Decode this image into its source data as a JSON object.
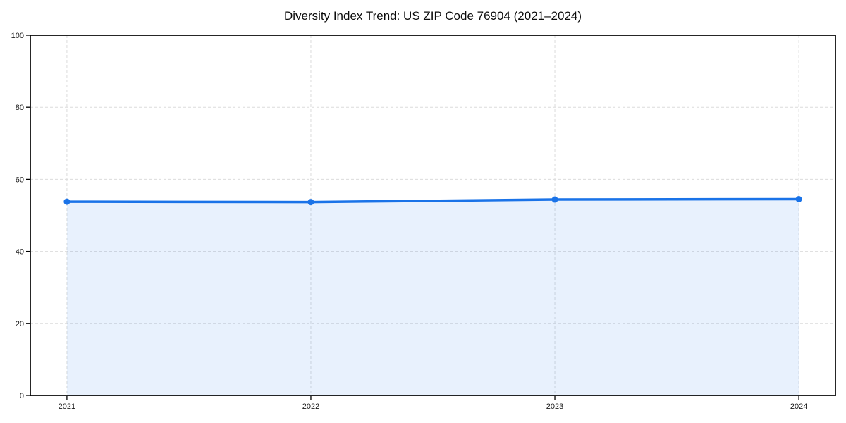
{
  "title": "Diversity Index Trend: US ZIP Code 76904 (2021–2024)",
  "chart_data": {
    "type": "line",
    "title": "Diversity Index Trend: US ZIP Code 76904 (2021–2024)",
    "xlabel": "",
    "ylabel": "",
    "x": [
      2021,
      2022,
      2023,
      2024
    ],
    "values": [
      53.8,
      53.7,
      54.4,
      54.5
    ],
    "series_name": "Diversity Index",
    "ylim": [
      0,
      100
    ],
    "yticks": [
      0,
      20,
      40,
      60,
      80,
      100
    ],
    "ytick_labels": [
      "0",
      "20",
      "40",
      "60",
      "80",
      "100"
    ],
    "xticks": [
      2021,
      2022,
      2023,
      2024
    ],
    "xtick_labels": [
      "2021",
      "2022",
      "2023",
      "2024"
    ],
    "x_padding_years": 0.15,
    "grid": "dashed",
    "grid_both_axes": true,
    "legend": "none",
    "area_fill": true,
    "area_fill_to": 0,
    "marker": "circle",
    "colors": {
      "line": "#1a73e8",
      "marker": "#1a73e8",
      "fill": "#1a73e8",
      "grid": "#dcdcdc",
      "spine": "#000000",
      "text": "#1a1a1a",
      "background": "#ffffff"
    },
    "fill_opacity": 0.1
  }
}
